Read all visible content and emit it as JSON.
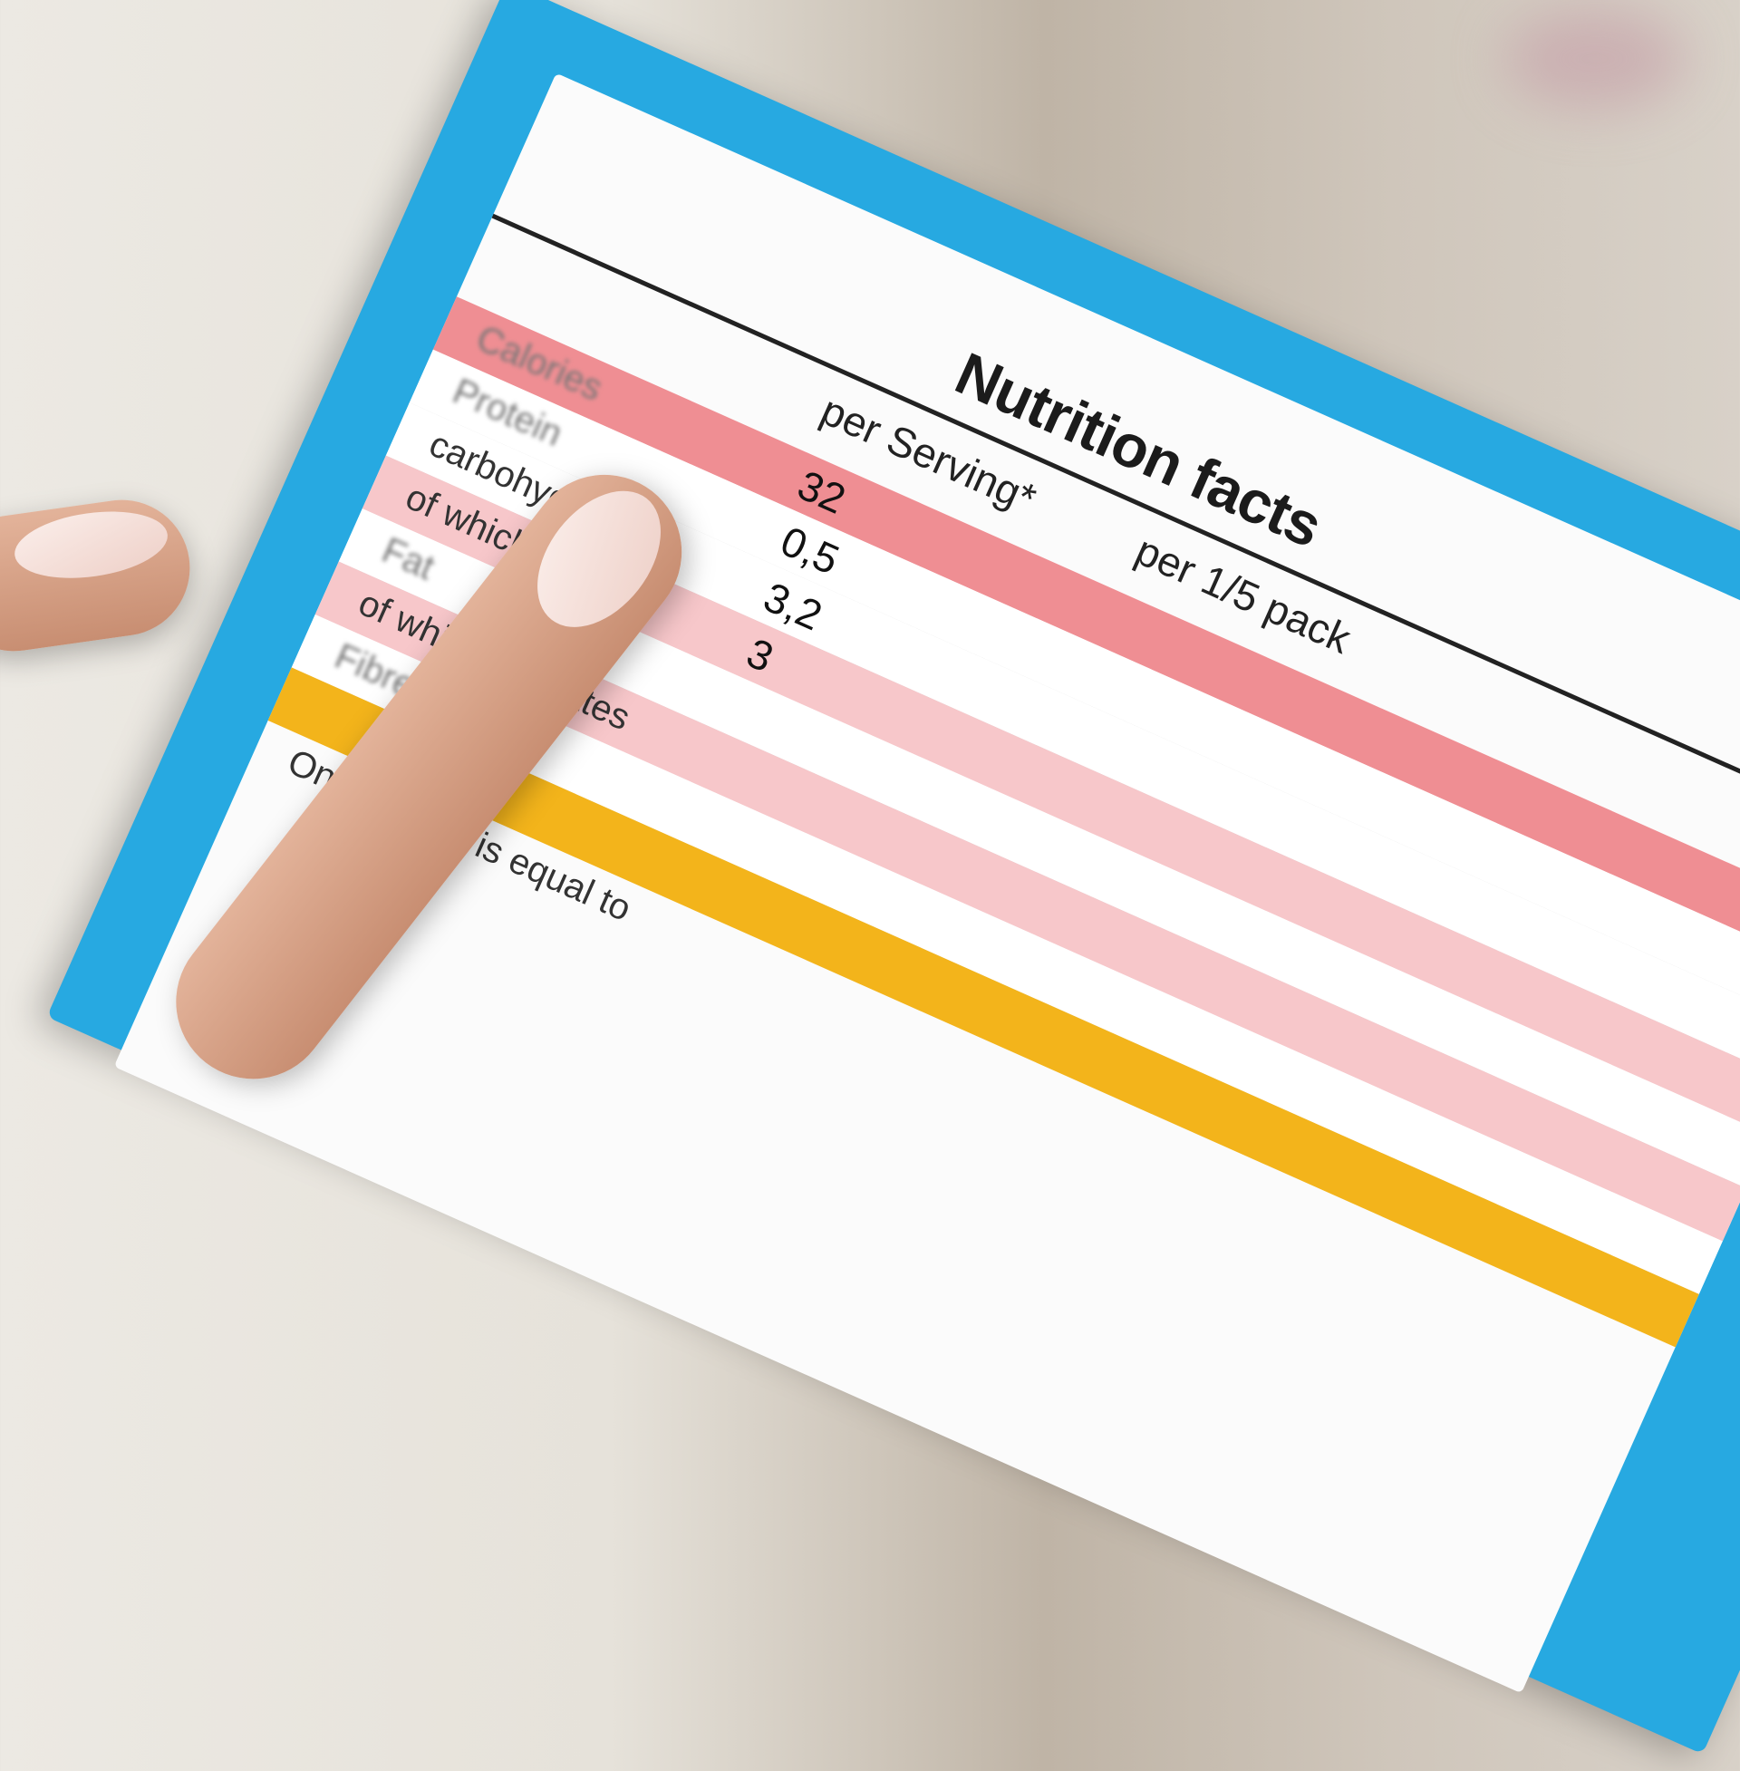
{
  "label": {
    "title": "Nutrition facts",
    "columns": [
      "per Serving*",
      "per 1/5 pack"
    ],
    "rows": [
      {
        "name": "Calories",
        "serving": "32",
        "style": "pinkdark"
      },
      {
        "name": "Protein",
        "serving": "0,5",
        "style": "white"
      },
      {
        "name": "carbohydrates",
        "serving": "3,2",
        "style": "white"
      },
      {
        "name": "of which sugars",
        "serving": "3",
        "style": "pink"
      },
      {
        "name": "Fat",
        "serving": "",
        "style": "white"
      },
      {
        "name": "of which saturates",
        "serving": "",
        "style": "pink"
      },
      {
        "name": "Fibre",
        "serving": "",
        "style": "white"
      },
      {
        "name": "",
        "serving": "",
        "style": "yellow"
      }
    ],
    "footnote": "One serving is equal to"
  },
  "colors": {
    "card": "#27a9e1",
    "pink_dark": "#ef8e93",
    "pink_light": "#f7c7ca",
    "yellow": "#f3b41b"
  }
}
